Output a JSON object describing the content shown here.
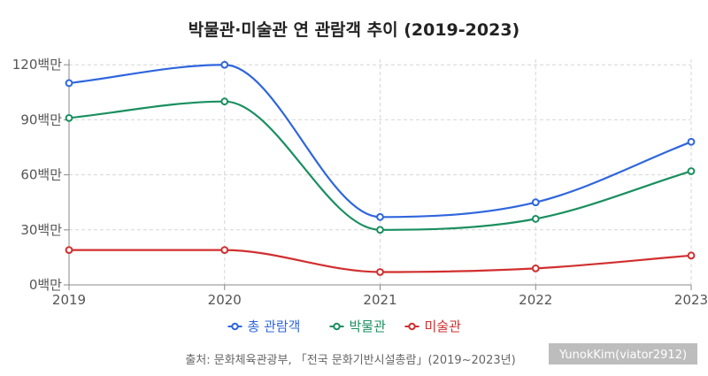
{
  "chart_data": {
    "type": "line",
    "title": "박물관·미술관 연 관람객 추이 (2019-2023)",
    "x": [
      "2019",
      "2020",
      "2021",
      "2022",
      "2023"
    ],
    "yticks": [
      "0백만",
      "30백만",
      "60백만",
      "90백만",
      "120백만"
    ],
    "ylim": [
      0,
      123
    ],
    "grid": true,
    "legend_position": "bottom",
    "series": [
      {
        "name": "총 관람객",
        "color": "#2f66dd",
        "values": [
          110,
          120,
          37,
          45,
          78
        ]
      },
      {
        "name": "박물관",
        "color": "#1a8f60",
        "values": [
          91,
          100,
          30,
          36,
          62
        ]
      },
      {
        "name": "미술관",
        "color": "#d12f2f",
        "values": [
          19,
          19,
          7,
          9,
          16
        ]
      }
    ]
  },
  "source_text": "출처: 문화체육관광부, 「전국 문화기반시설총람」(2019~2023년)",
  "watermark": "YunokKim(viator2912)"
}
